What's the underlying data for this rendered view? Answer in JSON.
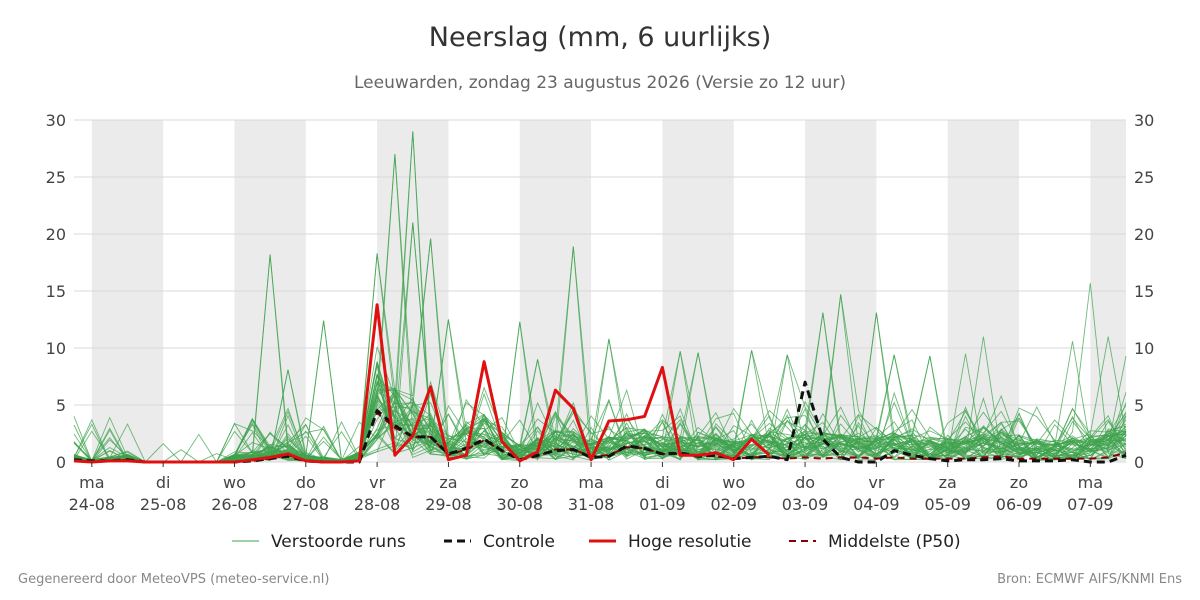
{
  "colors": {
    "ensemble": "#3fa34d",
    "control": "#111111",
    "hires": "#e01010",
    "median": "#8b0000",
    "weekend_band": "#ebebeb",
    "grid": "#d9d9d9"
  },
  "chart_data": {
    "type": "line",
    "title": "Neerslag (mm, 6 uurlijks)",
    "subtitle": "Leeuwarden, zondag 23 augustus 2026 (Versie zo 12 uur)",
    "xlabel": "",
    "ylabel": "",
    "ylim": [
      0,
      30
    ],
    "yticks": [
      0,
      5,
      10,
      15,
      20,
      25,
      30
    ],
    "x_unit": "days since 24-08 00:00",
    "xlim": [
      -0.25,
      14.5
    ],
    "grid": true,
    "weekend_bands": [
      [
        0,
        1
      ],
      [
        2,
        3
      ],
      [
        4,
        5
      ],
      [
        6,
        7
      ],
      [
        8,
        9
      ],
      [
        10,
        11
      ],
      [
        12,
        13
      ],
      [
        14,
        15
      ]
    ],
    "x_ticks": [
      {
        "day": "ma",
        "date": "24-08"
      },
      {
        "day": "di",
        "date": "25-08"
      },
      {
        "day": "wo",
        "date": "26-08"
      },
      {
        "day": "do",
        "date": "27-08"
      },
      {
        "day": "vr",
        "date": "28-08"
      },
      {
        "day": "za",
        "date": "29-08"
      },
      {
        "day": "zo",
        "date": "30-08"
      },
      {
        "day": "ma",
        "date": "31-08"
      },
      {
        "day": "di",
        "date": "01-09"
      },
      {
        "day": "wo",
        "date": "02-09"
      },
      {
        "day": "do",
        "date": "03-09"
      },
      {
        "day": "vr",
        "date": "04-09"
      },
      {
        "day": "za",
        "date": "05-09"
      },
      {
        "day": "zo",
        "date": "06-09"
      },
      {
        "day": "ma",
        "date": "07-09"
      }
    ],
    "legend": {
      "position": "bottom",
      "entries": [
        "Verstoorde runs",
        "Controle",
        "Hoge resolutie",
        "Middelste (P50)"
      ]
    },
    "series": [
      {
        "name": "Hoge resolutie",
        "x": [
          -0.25,
          0,
          0.25,
          0.5,
          0.75,
          1,
          1.25,
          1.5,
          1.75,
          2,
          2.25,
          2.5,
          2.75,
          3,
          3.25,
          3.5,
          3.75,
          4,
          4.25,
          4.5,
          4.75,
          5,
          5.25,
          5.5,
          5.75,
          6,
          6.25,
          6.5,
          6.75,
          7,
          7.25,
          7.5,
          7.75,
          8,
          8.25,
          8.5,
          8.75,
          9,
          9.25,
          9.5
        ],
        "values": [
          0.1,
          0.0,
          0.1,
          0.1,
          0.0,
          0.0,
          0.0,
          0.0,
          0.0,
          0.0,
          0.2,
          0.4,
          0.7,
          0.1,
          0.0,
          0.0,
          0.1,
          13.8,
          0.6,
          2.3,
          6.6,
          0.2,
          0.6,
          8.8,
          1.8,
          0.1,
          0.9,
          6.3,
          4.7,
          0.2,
          3.6,
          3.7,
          4.0,
          8.3,
          0.6,
          0.6,
          0.8,
          0.2,
          2.0,
          0.6
        ]
      },
      {
        "name": "Controle",
        "x": [
          -0.25,
          0,
          0.25,
          0.5,
          0.75,
          1,
          1.25,
          1.5,
          1.75,
          2,
          2.25,
          2.5,
          2.75,
          3,
          3.25,
          3.5,
          3.75,
          4,
          4.25,
          4.5,
          4.75,
          5,
          5.25,
          5.5,
          5.75,
          6,
          6.25,
          6.5,
          6.75,
          7,
          7.25,
          7.5,
          7.75,
          8,
          8.25,
          8.5,
          8.75,
          9,
          9.25,
          9.5,
          9.75,
          10,
          10.25,
          10.5,
          10.75,
          11,
          11.25,
          11.5,
          11.75,
          12,
          12.25,
          12.5,
          12.75,
          13,
          13.25,
          13.5,
          13.75,
          14,
          14.25,
          14.5
        ],
        "values": [
          0.2,
          0.1,
          0.1,
          0.2,
          0.0,
          0.0,
          0.0,
          0.0,
          0.0,
          0.0,
          0.1,
          0.3,
          0.5,
          0.1,
          0.0,
          0.0,
          0.0,
          4.5,
          3.2,
          2.2,
          2.2,
          0.7,
          1.2,
          2.0,
          1.0,
          0.2,
          0.6,
          1.0,
          1.1,
          0.4,
          0.5,
          1.4,
          1.2,
          0.7,
          0.8,
          0.5,
          0.6,
          0.3,
          0.4,
          0.5,
          0.2,
          7.0,
          2.0,
          0.4,
          0.0,
          0.0,
          1.0,
          0.6,
          0.3,
          0.1,
          0.2,
          0.2,
          0.3,
          0.1,
          0.1,
          0.1,
          0.2,
          0.0,
          0.0,
          0.6
        ]
      },
      {
        "name": "Middelste (P50)",
        "x": [
          -0.25,
          0,
          0.25,
          0.5,
          0.75,
          1,
          1.25,
          1.5,
          1.75,
          2,
          2.25,
          2.5,
          2.75,
          3,
          3.25,
          3.5,
          3.75,
          4,
          4.25,
          4.5,
          4.75,
          5,
          5.25,
          5.5,
          5.75,
          6,
          6.25,
          6.5,
          6.75,
          7,
          7.25,
          7.5,
          7.75,
          8,
          8.25,
          8.5,
          8.75,
          9,
          9.25,
          9.5,
          9.75,
          10,
          10.25,
          10.5,
          10.75,
          11,
          11.25,
          11.5,
          11.75,
          12,
          12.25,
          12.5,
          12.75,
          13,
          13.25,
          13.5,
          13.75,
          14,
          14.25,
          14.5
        ],
        "values": [
          0.2,
          0.1,
          0.1,
          0.2,
          0.0,
          0.0,
          0.0,
          0.0,
          0.0,
          0.0,
          0.1,
          0.3,
          0.6,
          0.1,
          0.0,
          0.0,
          0.1,
          4.3,
          3.0,
          2.2,
          2.2,
          0.6,
          1.1,
          1.9,
          1.0,
          0.2,
          0.5,
          1.1,
          1.1,
          0.5,
          0.6,
          1.3,
          1.2,
          0.7,
          0.7,
          0.5,
          0.5,
          0.3,
          0.4,
          0.4,
          0.3,
          0.4,
          0.3,
          0.4,
          0.4,
          0.3,
          0.4,
          0.3,
          0.3,
          0.3,
          0.3,
          0.4,
          0.5,
          0.3,
          0.3,
          0.3,
          0.3,
          0.3,
          0.4,
          0.8
        ]
      }
    ],
    "ensemble": {
      "name": "Verstoorde runs",
      "members": 50,
      "x_start": -0.25,
      "x_step": 0.25,
      "median_profile": [
        0.3,
        0.1,
        0.2,
        0.3,
        0.0,
        0.0,
        0.0,
        0.0,
        0.0,
        0.3,
        0.4,
        0.6,
        0.9,
        0.3,
        0.2,
        0.1,
        0.4,
        4.0,
        3.0,
        2.5,
        2.0,
        1.0,
        1.5,
        1.9,
        1.2,
        0.7,
        1.0,
        1.3,
        1.2,
        0.9,
        1.0,
        1.4,
        1.3,
        1.0,
        1.1,
        1.0,
        1.0,
        0.9,
        1.1,
        1.2,
        1.0,
        1.3,
        1.2,
        1.1,
        1.0,
        1.0,
        1.2,
        1.1,
        1.0,
        0.9,
        1.0,
        1.2,
        1.3,
        1.1,
        0.9,
        0.9,
        1.0,
        1.1,
        1.3,
        1.5
      ],
      "peaks": [
        {
          "x": 2.5,
          "value": 18.2
        },
        {
          "x": 2.75,
          "value": 8.1
        },
        {
          "x": 3.25,
          "value": 12.4
        },
        {
          "x": 4.0,
          "value": 18.3
        },
        {
          "x": 4.25,
          "value": 27.0
        },
        {
          "x": 4.5,
          "value": 29.0
        },
        {
          "x": 4.5,
          "value": 21.0
        },
        {
          "x": 4.75,
          "value": 19.6
        },
        {
          "x": 5.0,
          "value": 12.5
        },
        {
          "x": 6.0,
          "value": 12.3
        },
        {
          "x": 6.25,
          "value": 9.0
        },
        {
          "x": 6.75,
          "value": 18.9
        },
        {
          "x": 7.25,
          "value": 10.8
        },
        {
          "x": 8.25,
          "value": 9.7
        },
        {
          "x": 8.5,
          "value": 9.6
        },
        {
          "x": 9.25,
          "value": 9.8
        },
        {
          "x": 9.75,
          "value": 9.4
        },
        {
          "x": 10.25,
          "value": 13.1
        },
        {
          "x": 10.5,
          "value": 14.7
        },
        {
          "x": 11.0,
          "value": 13.1
        },
        {
          "x": 11.25,
          "value": 9.4
        },
        {
          "x": 11.75,
          "value": 9.3
        },
        {
          "x": 12.25,
          "value": 9.5
        },
        {
          "x": 12.5,
          "value": 11.0
        },
        {
          "x": 13.75,
          "value": 10.6
        },
        {
          "x": 14.0,
          "value": 15.7
        },
        {
          "x": 14.25,
          "value": 11.0
        },
        {
          "x": 14.5,
          "value": 9.3
        }
      ]
    }
  },
  "footer": {
    "left": "Gegenereerd door MeteoVPS (meteo-service.nl)",
    "right": "Bron: ECMWF AIFS/KNMI Ens"
  }
}
